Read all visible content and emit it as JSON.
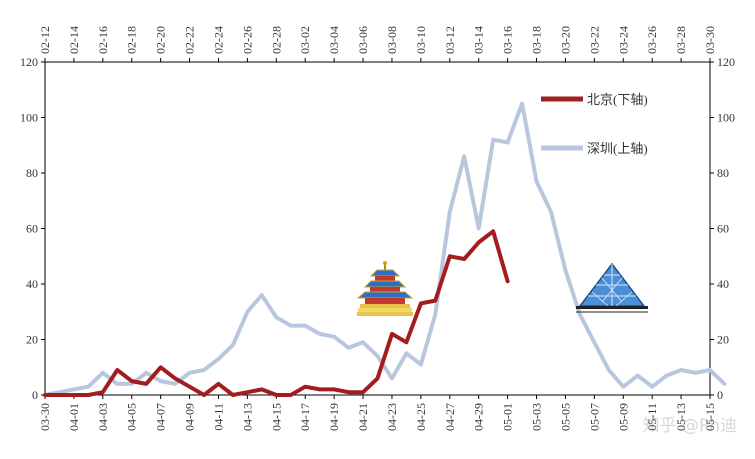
{
  "watermark": "知乎 @Ph迪",
  "colors": {
    "beijing": "#a31d1f",
    "shenzhen": "#b8c7de",
    "axis": "#000000"
  },
  "icons": {
    "beijing": "temple-of-heaven-icon",
    "shenzhen": "glass-pyramid-icon"
  },
  "chart_data": {
    "type": "line",
    "grid": false,
    "legend_position": "top-right",
    "y_left": {
      "min": 0,
      "max": 120,
      "ticks": [
        0,
        20,
        40,
        60,
        80,
        100,
        120
      ]
    },
    "y_right": {
      "min": 0,
      "max": 120,
      "ticks": [
        0,
        20,
        40,
        60,
        80,
        100,
        120
      ]
    },
    "x_bottom": {
      "ticks": [
        "03-30",
        "04-01",
        "04-03",
        "04-05",
        "04-07",
        "04-09",
        "04-11",
        "04-13",
        "04-15",
        "04-17",
        "04-19",
        "04-21",
        "04-23",
        "04-25",
        "04-27",
        "04-29",
        "05-01",
        "05-03",
        "05-05",
        "05-07",
        "05-09",
        "05-11",
        "05-13",
        "05-15"
      ]
    },
    "x_top": {
      "ticks": [
        "02-12",
        "02-14",
        "02-16",
        "02-18",
        "02-20",
        "02-22",
        "02-24",
        "02-26",
        "02-28",
        "03-02",
        "03-04",
        "03-06",
        "03-08",
        "03-10",
        "03-12",
        "03-14",
        "03-16",
        "03-18",
        "03-20",
        "03-22",
        "03-24",
        "03-26",
        "03-28",
        "03-30"
      ]
    },
    "series": [
      {
        "name": "北京(下轴)",
        "axis": "bottom",
        "values": [
          0,
          0,
          0,
          0,
          1,
          9,
          5,
          4,
          10,
          6,
          3,
          0,
          4,
          0,
          1,
          2,
          0,
          0,
          3,
          2,
          2,
          1,
          1,
          6,
          22,
          19,
          33,
          34,
          50,
          49,
          55,
          59,
          41
        ]
      },
      {
        "name": "深圳(上轴)",
        "axis": "top",
        "values": [
          0,
          1,
          2,
          3,
          8,
          4,
          4,
          8,
          5,
          4,
          8,
          9,
          13,
          18,
          30,
          36,
          28,
          25,
          25,
          22,
          21,
          17,
          19,
          14,
          6,
          15,
          11,
          29,
          66,
          86,
          60,
          92,
          91,
          105,
          77,
          66,
          45,
          29,
          19,
          9,
          3,
          7,
          3,
          7,
          9,
          8,
          9,
          4
        ]
      }
    ]
  }
}
